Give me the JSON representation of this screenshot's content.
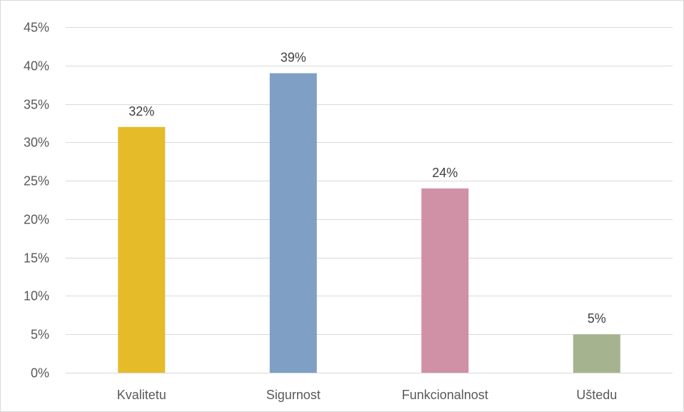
{
  "chart_data": {
    "type": "bar",
    "title": "",
    "xlabel": "",
    "ylabel": "",
    "categories": [
      "Kvalitetu",
      "Sigurnost",
      "Funkcionalnost",
      "Uštedu"
    ],
    "values": [
      32,
      39,
      24,
      5
    ],
    "data_labels": [
      "32%",
      "39%",
      "24%",
      "5%"
    ],
    "colors": [
      "#e6bb29",
      "#7f9fc4",
      "#d090a6",
      "#a5b48f"
    ],
    "ylim": [
      0,
      45
    ],
    "ytick_values": [
      0,
      5,
      10,
      15,
      20,
      25,
      30,
      35,
      40,
      45
    ],
    "ytick_labels": [
      "0%",
      "5%",
      "10%",
      "15%",
      "20%",
      "25%",
      "30%",
      "35%",
      "40%",
      "45%"
    ],
    "grid": true,
    "gridline_color": "#d9d9d9",
    "legend": "none"
  }
}
